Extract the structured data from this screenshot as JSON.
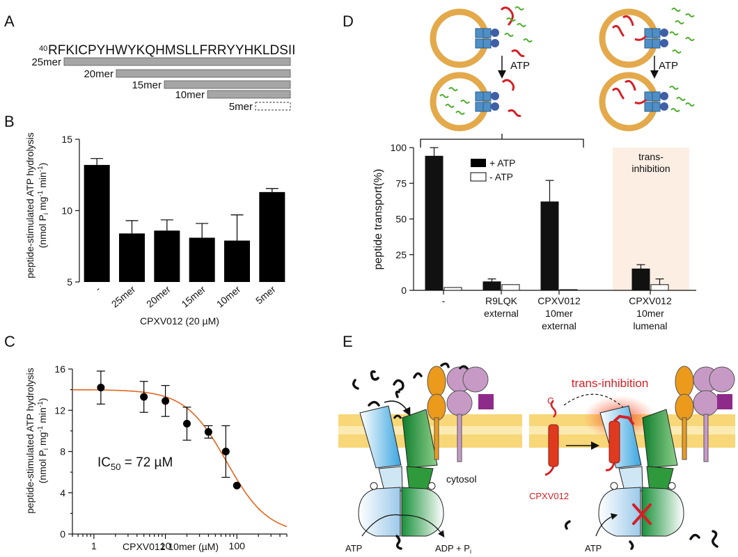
{
  "panels": {
    "A": {
      "label": "A",
      "sequence_superscript": "40",
      "sequence": "RFKICPYHWYKQHMSLLFRRYYHKLDSII",
      "peptides": [
        "25mer",
        "20mer",
        "15mer",
        "10mer",
        "5mer"
      ]
    },
    "B": {
      "label": "B",
      "ylabel_line1": "peptide-stimulated ATP hydrolysis",
      "ylabel_line2": "(nmol P",
      "ylabel_sub": "i",
      "ylabel_tail1": " mg",
      "ylabel_sup1": "-1",
      "ylabel_tail2": " min",
      "ylabel_sup2": "-1",
      "ylabel_tail3": ")",
      "xlabel": "CPXV012 (20 µM)"
    },
    "C": {
      "label": "C",
      "ylabel_line1": "peptide-stimulated ATP hydrolysis",
      "xlabel": "CPXV012 10mer (µM)",
      "ic50_prefix": "IC",
      "ic50_sub": "50",
      "ic50_value": " = 72 µM"
    },
    "D": {
      "label": "D",
      "ylabel": "peptide transport(%)",
      "legend_plus": "+ ATP",
      "legend_minus": "- ATP",
      "trans_line1": "trans-",
      "trans_line2": "inhibition",
      "atp_left": "ATP",
      "atp_right": "ATP",
      "xcat_0": "-",
      "xcat_1_l1": "R9LQK",
      "xcat_1_l2": "external",
      "xcat_2_l1": "CPXV012",
      "xcat_2_l2": "10mer",
      "xcat_2_l3": "external",
      "xcat_3_l1": "CPXV012",
      "xcat_3_l2": "10mer",
      "xcat_3_l3": "lumenal"
    },
    "E": {
      "label": "E",
      "trans_inhibition": "trans-inhibition",
      "c_label": "C",
      "cytosol": "cytosol",
      "cpxv012": "CPXV012",
      "atp_left": "ATP",
      "adp": "ADP + P",
      "adp_sub": "i",
      "atp_right": "ATP"
    }
  },
  "colors": {
    "bar_fill": "#000000",
    "curve": "#e0661e",
    "peptide_bar": "#a6a6a6",
    "vesicle": "#e3a94b",
    "peptide_red": "#d42027",
    "peptide_green": "#4fae2f",
    "transporter_blue": "#4f8fc6",
    "trans_bg": "#fdeee4",
    "membrane": "#f7d777",
    "tap_blue": "#7dc7ef",
    "tap_green": "#2e9a3c",
    "mhc_orange": "#ec9a1c",
    "mhc_purple": "#c79ac6"
  },
  "chart_data": [
    {
      "type": "bar",
      "panel": "B",
      "categories": [
        "-",
        "25mer",
        "20mer",
        "15mer",
        "10mer",
        "5mer"
      ],
      "values": [
        13.2,
        8.4,
        8.6,
        8.1,
        7.9,
        11.3
      ],
      "errors": [
        0.45,
        0.9,
        0.75,
        1.0,
        1.8,
        0.25
      ],
      "ylim": [
        5,
        15
      ],
      "yticks": [
        5,
        10,
        15
      ],
      "xlabel": "CPXV012 (20 µM)",
      "ylabel": "peptide-stimulated ATP hydrolysis (nmol Pi mg-1 min-1)"
    },
    {
      "type": "scatter",
      "panel": "C",
      "x": [
        1.25,
        5,
        10,
        20,
        40,
        70,
        100
      ],
      "y": [
        14.2,
        13.3,
        12.9,
        10.7,
        9.9,
        8.0,
        4.7
      ],
      "errors": [
        1.6,
        1.5,
        1.5,
        1.6,
        0.6,
        2.5,
        0
      ],
      "xscale": "log",
      "xlim": [
        0.5,
        500
      ],
      "xticks": [
        1,
        10,
        100
      ],
      "ylim": [
        0,
        16
      ],
      "yticks": [
        0,
        4,
        8,
        12,
        16
      ],
      "fit": {
        "top": 14.0,
        "bottom": 0,
        "ic50": 72,
        "hill": 1.5
      },
      "xlabel": "CPXV012 10mer (µM)",
      "ylabel": "peptide-stimulated ATP hydrolysis (nmol Pi mg-1 min-1)"
    },
    {
      "type": "bar",
      "panel": "D",
      "categories": [
        "-",
        "R9LQK external",
        "CPXV012 10mer external",
        "CPXV012 10mer lumenal"
      ],
      "series": [
        {
          "name": "+ ATP",
          "values": [
            94,
            6,
            62,
            15
          ],
          "errors": [
            6,
            2,
            15,
            3
          ]
        },
        {
          "name": "- ATP",
          "values": [
            2,
            4,
            0.5,
            4
          ],
          "errors": [
            0,
            0,
            0,
            4
          ]
        }
      ],
      "ylim": [
        0,
        100
      ],
      "yticks": [
        0,
        25,
        50,
        75,
        100
      ],
      "ylabel": "peptide transport(%)"
    }
  ]
}
